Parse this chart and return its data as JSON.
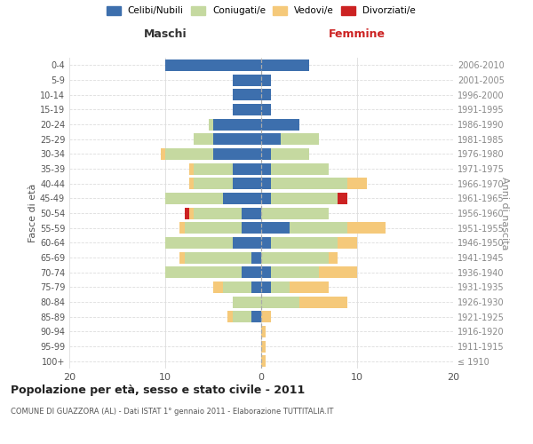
{
  "age_groups": [
    "100+",
    "95-99",
    "90-94",
    "85-89",
    "80-84",
    "75-79",
    "70-74",
    "65-69",
    "60-64",
    "55-59",
    "50-54",
    "45-49",
    "40-44",
    "35-39",
    "30-34",
    "25-29",
    "20-24",
    "15-19",
    "10-14",
    "5-9",
    "0-4"
  ],
  "birth_years": [
    "≤ 1910",
    "1911-1915",
    "1916-1920",
    "1921-1925",
    "1926-1930",
    "1931-1935",
    "1936-1940",
    "1941-1945",
    "1946-1950",
    "1951-1955",
    "1956-1960",
    "1961-1965",
    "1966-1970",
    "1971-1975",
    "1976-1980",
    "1981-1985",
    "1986-1990",
    "1991-1995",
    "1996-2000",
    "2001-2005",
    "2006-2010"
  ],
  "male": {
    "celibe": [
      0,
      0,
      0,
      1,
      0,
      1,
      2,
      1,
      3,
      2,
      2,
      4,
      3,
      3,
      5,
      5,
      5,
      3,
      3,
      3,
      10
    ],
    "coniugato": [
      0,
      0,
      0,
      2,
      3,
      3,
      8,
      7,
      7,
      6,
      5,
      6,
      4,
      4,
      5,
      2,
      0.5,
      0,
      0,
      0,
      0
    ],
    "vedovo": [
      0,
      0,
      0,
      0.5,
      0,
      1,
      0,
      0.5,
      0,
      0.5,
      0.5,
      0,
      0.5,
      0.5,
      0.5,
      0,
      0,
      0,
      0,
      0,
      0
    ],
    "divorziato": [
      0,
      0,
      0,
      0,
      0,
      0,
      0,
      0,
      0,
      0,
      0.5,
      0,
      0,
      0,
      0,
      0,
      0,
      0,
      0,
      0,
      0
    ]
  },
  "female": {
    "nubile": [
      0,
      0,
      0,
      0,
      0,
      1,
      1,
      0,
      1,
      3,
      0,
      1,
      1,
      1,
      1,
      2,
      4,
      1,
      1,
      1,
      5
    ],
    "coniugata": [
      0,
      0,
      0,
      0,
      4,
      2,
      5,
      7,
      7,
      6,
      7,
      7,
      8,
      6,
      4,
      4,
      0,
      0,
      0,
      0,
      0
    ],
    "vedova": [
      0.5,
      0.5,
      0.5,
      1,
      5,
      4,
      4,
      1,
      2,
      4,
      0,
      0,
      2,
      0,
      0,
      0,
      0,
      0,
      0,
      0,
      0
    ],
    "divorziata": [
      0,
      0,
      0,
      0,
      0,
      0,
      0,
      0,
      0,
      0,
      0,
      1,
      0,
      0,
      0,
      0,
      0,
      0,
      0,
      0,
      0
    ]
  },
  "colors": {
    "celibe_nubile": "#3d6fad",
    "coniugato_coniugata": "#c5d9a0",
    "vedovo_vedova": "#f5c97a",
    "divorziato_divorziata": "#cc2222"
  },
  "xlim": [
    -20,
    20
  ],
  "xticks": [
    -20,
    -10,
    0,
    10,
    20
  ],
  "xticklabels": [
    "20",
    "10",
    "0",
    "10",
    "20"
  ],
  "title": "Popolazione per età, sesso e stato civile - 2011",
  "subtitle": "COMUNE DI GUAZZORA (AL) - Dati ISTAT 1° gennaio 2011 - Elaborazione TUTTITALIA.IT",
  "ylabel_left": "Fasce di età",
  "ylabel_right": "Anni di nascita",
  "header_maschi": "Maschi",
  "header_femmine": "Femmine",
  "legend_labels": [
    "Celibi/Nubili",
    "Coniugati/e",
    "Vedovi/e",
    "Divorziati/e"
  ],
  "background_color": "#ffffff",
  "grid_color": "#dddddd"
}
